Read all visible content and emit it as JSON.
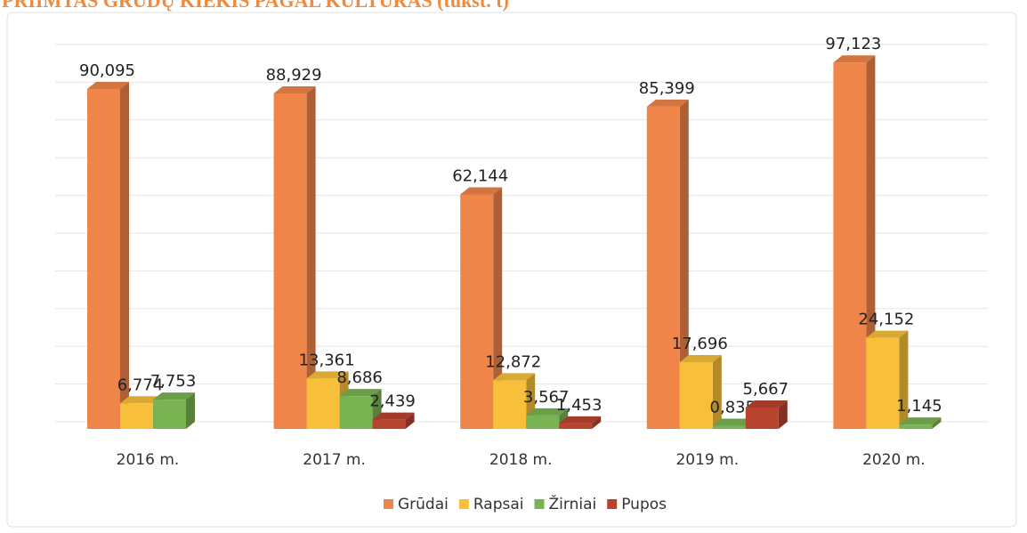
{
  "chart_data": {
    "type": "bar3d",
    "title": "PRIIMTAS GRŪDŲ KIEKIS PAGAL KULTŪRAS (tūkst. t)",
    "categories": [
      "2016 m.",
      "2017 m.",
      "2018 m.",
      "2019 m.",
      "2020 m."
    ],
    "series": [
      {
        "name": "Grūdai",
        "color": "#f0854a",
        "values": [
          90.095,
          88.929,
          62.144,
          85.399,
          97.123
        ],
        "value_labels": [
          "90,095",
          "88,929",
          "62,144",
          "85,399",
          "97,123"
        ]
      },
      {
        "name": "Rapsai",
        "color": "#f8c03a",
        "values": [
          6.774,
          13.361,
          12.872,
          17.696,
          24.152
        ],
        "value_labels": [
          "6,774",
          "13,361",
          "12,872",
          "17,696",
          "24,152"
        ]
      },
      {
        "name": "Žirniai",
        "color": "#79b352",
        "values": [
          7.753,
          8.686,
          3.567,
          0.835,
          1.145
        ],
        "value_labels": [
          "7,753",
          "8,686",
          "3,567",
          "0,835",
          "1,145"
        ]
      },
      {
        "name": "Pupos",
        "color": "#b8432f",
        "values": [
          null,
          2.439,
          1.453,
          5.667,
          null
        ],
        "value_labels": [
          null,
          "2,439",
          "1,453",
          "5,667",
          null
        ]
      }
    ],
    "ylim": [
      0,
      100
    ],
    "yticks": [
      0,
      10,
      20,
      30,
      40,
      50,
      60,
      70,
      80,
      90,
      100
    ],
    "grid": true,
    "legend": "bottom"
  }
}
